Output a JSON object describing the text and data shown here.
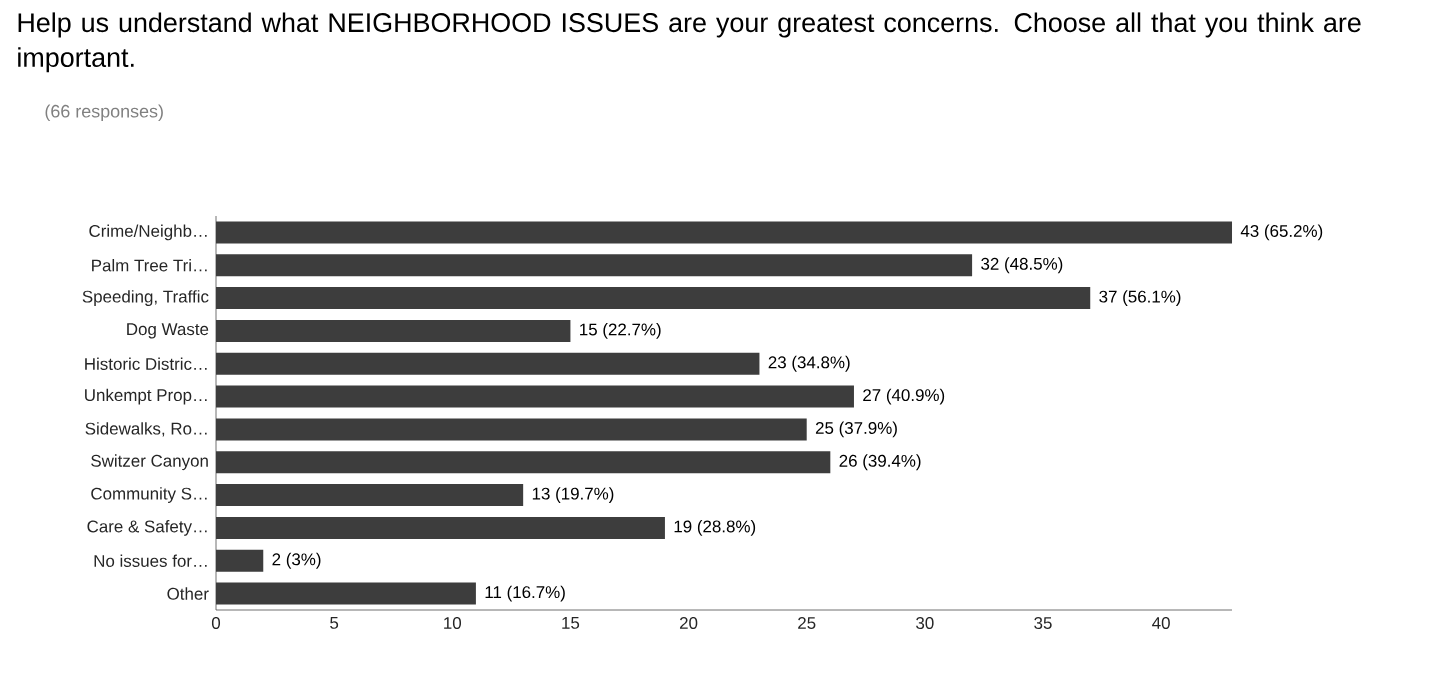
{
  "chart_data": {
    "type": "bar",
    "orientation": "horizontal",
    "title": "Help us understand what NEIGHBORHOOD ISSUES are your greatest concerns. Choose all that you think are important.",
    "subtitle": "(66 responses)",
    "categories": [
      "Crime/Neighb…",
      "Palm Tree Tri…",
      "Speeding, Traffic",
      "Dog Waste",
      "Historic Distric…",
      "Unkempt Prop…",
      "Sidewalks, Ro…",
      "Switzer Canyon",
      "Community S…",
      "Care & Safety…",
      "No issues for…",
      "Other"
    ],
    "values": [
      43,
      32,
      37,
      15,
      23,
      27,
      25,
      26,
      13,
      19,
      2,
      11
    ],
    "value_labels": [
      "43 (65.2%)",
      "32 (48.5%)",
      "37 (56.1%)",
      "15 (22.7%)",
      "23 (34.8%)",
      "27 (40.9%)",
      "25 (37.9%)",
      "26 (39.4%)",
      "13 (19.7%)",
      "19 (28.8%)",
      "2 (3%)",
      "11 (16.7%)"
    ],
    "color": "#3d3d3d",
    "xlim": [
      0,
      43
    ],
    "xticks": [
      0,
      5,
      10,
      15,
      20,
      25,
      30,
      35,
      40
    ]
  }
}
